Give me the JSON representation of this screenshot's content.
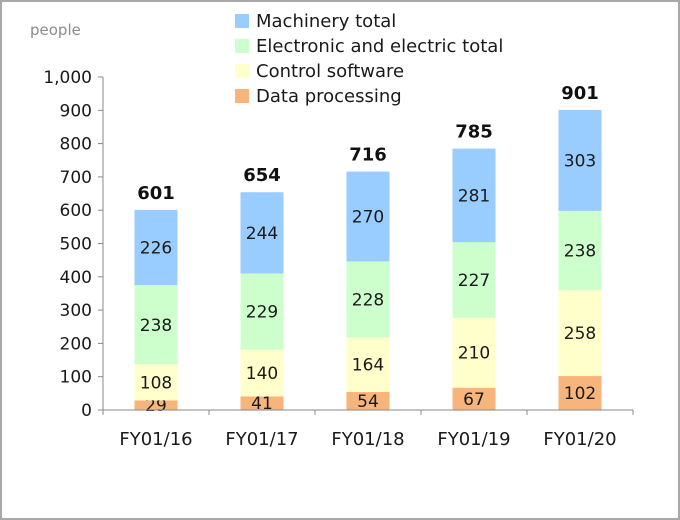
{
  "chart_data": {
    "type": "bar",
    "stacked": true,
    "unit_label": "people",
    "categories": [
      "FY01/16",
      "FY01/17",
      "FY01/18",
      "FY01/19",
      "FY01/20"
    ],
    "series": [
      {
        "name": "Data processing",
        "values": [
          29,
          41,
          54,
          67,
          102
        ],
        "color": "#f8b57b"
      },
      {
        "name": "Control software",
        "values": [
          108,
          140,
          164,
          210,
          258
        ],
        "color": "#ffffcc"
      },
      {
        "name": "Electronic and electric total",
        "values": [
          238,
          229,
          228,
          227,
          238
        ],
        "color": "#ccffcc"
      },
      {
        "name": "Machinery total",
        "values": [
          226,
          244,
          270,
          281,
          303
        ],
        "color": "#99ccff"
      }
    ],
    "totals": [
      601,
      654,
      716,
      785,
      901
    ],
    "ylim": [
      0,
      1000
    ],
    "yticks": [
      "0",
      "100",
      "200",
      "300",
      "400",
      "500",
      "600",
      "700",
      "800",
      "900",
      "1,000"
    ],
    "grid": false,
    "legend_position": "top",
    "legend_order": [
      "Machinery total",
      "Electronic and electric total",
      "Control software",
      "Data processing"
    ]
  }
}
